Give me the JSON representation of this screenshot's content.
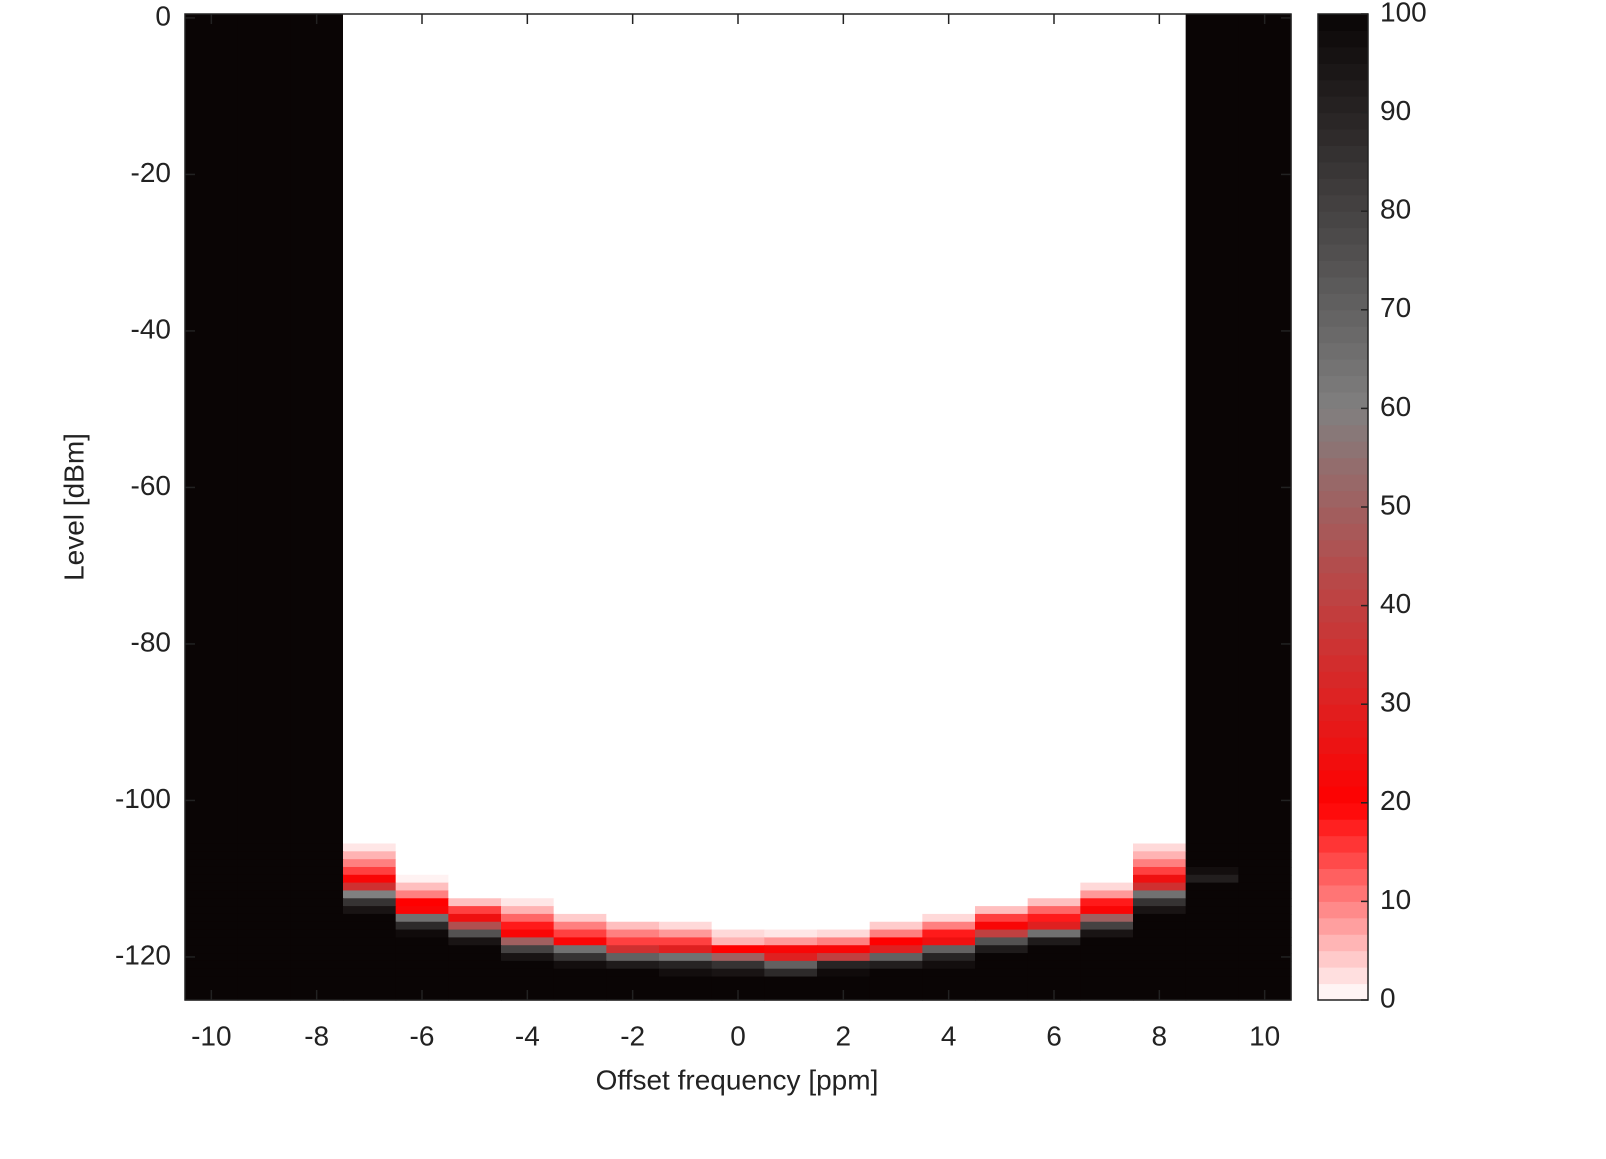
{
  "chart_data": {
    "type": "heatmap",
    "xlabel": "Offset frequency [ppm]",
    "ylabel": "Level [dBm]",
    "x": [
      -10,
      -9,
      -8,
      -7,
      -6,
      -5,
      -4,
      -3,
      -2,
      -1,
      0,
      1,
      2,
      3,
      4,
      5,
      6,
      7,
      8,
      9,
      10
    ],
    "ybins": [
      0.5,
      -105.5,
      -106.5,
      -107.5,
      -108.5,
      -109.5,
      -110.5,
      -111.5,
      -112.5,
      -113.5,
      -114.5,
      -115.5,
      -116.5,
      -117.5,
      -118.5,
      -119.5,
      -120.5,
      -121.5,
      -122.5,
      -125.5
    ],
    "z": [
      [
        100,
        100,
        100,
        0,
        0,
        0,
        0,
        0,
        0,
        0,
        0,
        0,
        0,
        0,
        0,
        0,
        0,
        0,
        0,
        100,
        100
      ],
      [
        100,
        100,
        100,
        2,
        0,
        0,
        0,
        0,
        0,
        0,
        0,
        0,
        0,
        0,
        0,
        0,
        0,
        0,
        3,
        100,
        100
      ],
      [
        100,
        100,
        100,
        6,
        0,
        0,
        0,
        0,
        0,
        0,
        0,
        0,
        0,
        0,
        0,
        0,
        0,
        0,
        6,
        100,
        100
      ],
      [
        100,
        100,
        100,
        10,
        0,
        0,
        0,
        0,
        0,
        0,
        0,
        0,
        0,
        0,
        0,
        0,
        0,
        0,
        10,
        100,
        100
      ],
      [
        100,
        100,
        100,
        15,
        0,
        0,
        0,
        0,
        0,
        0,
        0,
        0,
        0,
        0,
        0,
        0,
        0,
        0,
        15,
        97,
        100
      ],
      [
        100,
        100,
        100,
        22,
        1,
        0,
        0,
        0,
        0,
        0,
        0,
        0,
        0,
        0,
        0,
        0,
        0,
        0,
        25,
        92,
        100
      ],
      [
        100,
        100,
        100,
        35,
        5,
        0,
        0,
        0,
        0,
        0,
        0,
        0,
        0,
        0,
        0,
        0,
        0,
        3,
        35,
        100,
        100
      ],
      [
        100,
        100,
        100,
        60,
        10,
        0,
        0,
        0,
        0,
        0,
        0,
        0,
        0,
        0,
        0,
        0,
        0,
        8,
        65,
        100,
        100
      ],
      [
        100,
        100,
        100,
        85,
        20,
        5,
        2,
        0,
        0,
        0,
        0,
        0,
        0,
        0,
        0,
        0,
        5,
        18,
        85,
        100,
        100
      ],
      [
        100,
        100,
        100,
        95,
        22,
        15,
        6,
        0,
        0,
        0,
        0,
        0,
        0,
        0,
        0,
        5,
        12,
        22,
        95,
        100,
        100
      ],
      [
        100,
        100,
        100,
        100,
        65,
        25,
        12,
        4,
        0,
        0,
        0,
        0,
        0,
        0,
        3,
        15,
        18,
        50,
        100,
        100,
        100
      ],
      [
        100,
        100,
        100,
        100,
        88,
        45,
        18,
        10,
        5,
        3,
        0,
        0,
        0,
        4,
        10,
        22,
        30,
        80,
        100,
        100,
        100
      ],
      [
        100,
        100,
        100,
        100,
        98,
        75,
        22,
        15,
        10,
        8,
        3,
        2,
        3,
        10,
        18,
        40,
        65,
        95,
        100,
        100,
        100
      ],
      [
        100,
        100,
        100,
        100,
        100,
        95,
        50,
        22,
        15,
        15,
        6,
        8,
        10,
        20,
        25,
        75,
        93,
        100,
        100,
        100,
        100
      ],
      [
        100,
        100,
        100,
        100,
        100,
        100,
        80,
        65,
        35,
        30,
        20,
        22,
        22,
        30,
        70,
        93,
        100,
        100,
        100,
        100,
        100
      ],
      [
        100,
        100,
        100,
        100,
        100,
        100,
        95,
        85,
        70,
        65,
        50,
        30,
        40,
        70,
        90,
        100,
        100,
        100,
        100,
        100,
        100
      ],
      [
        100,
        100,
        100,
        100,
        100,
        100,
        100,
        97,
        93,
        90,
        85,
        70,
        90,
        92,
        97,
        100,
        100,
        100,
        100,
        100,
        100
      ],
      [
        100,
        100,
        100,
        100,
        100,
        100,
        100,
        100,
        100,
        97,
        95,
        88,
        98,
        100,
        100,
        100,
        100,
        100,
        100,
        100,
        100
      ],
      [
        100,
        100,
        100,
        100,
        100,
        100,
        100,
        100,
        100,
        100,
        100,
        100,
        100,
        100,
        100,
        100,
        100,
        100,
        100,
        100,
        100
      ]
    ],
    "xlim": [
      -10.5,
      10.5
    ],
    "ylim": [
      -125.5,
      0.5
    ],
    "xticks": [
      -10,
      -8,
      -6,
      -4,
      -2,
      0,
      2,
      4,
      6,
      8,
      10
    ],
    "yticks": [
      0,
      -20,
      -40,
      -60,
      -80,
      -100,
      -120
    ],
    "clim": [
      0,
      100
    ],
    "cticks": [
      0,
      10,
      20,
      30,
      40,
      50,
      60,
      70,
      80,
      90,
      100
    ]
  }
}
